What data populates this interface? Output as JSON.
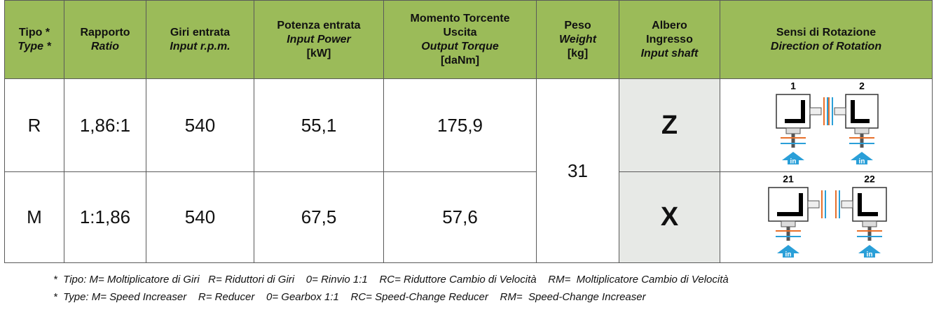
{
  "table": {
    "header": [
      [
        "Tipo *",
        "Type *"
      ],
      [
        "Rapporto",
        "Ratio"
      ],
      [
        "Giri entrata",
        "Input r.p.m."
      ],
      [
        "Potenza entrata",
        "Input Power",
        "[kW]"
      ],
      [
        "Momento Torcente",
        "Uscita",
        "Output Torque",
        "[daNm]"
      ],
      [
        "Peso",
        "Weight",
        "[kg]"
      ],
      [
        "Albero",
        "Ingresso",
        "Input shaft"
      ],
      [
        "Sensi di Rotazione",
        "Direction of Rotation"
      ]
    ],
    "rows": [
      [
        "R",
        "1,86:1",
        "540",
        "55,1",
        "175,9"
      ],
      [
        "M",
        "1:1,86",
        "540",
        "67,5",
        "57,6"
      ]
    ],
    "weight": "31",
    "shafts": [
      "Z",
      "X"
    ],
    "rotation": [
      {
        "labels": [
          "1",
          "2"
        ],
        "input": "in"
      },
      {
        "labels": [
          "21",
          "22"
        ],
        "input": "in"
      }
    ]
  },
  "footnotes": [
    "*  Tipo: M= Moltiplicatore di Giri   R= Riduttori di Giri    0= Rinvio 1:1    RC= Riduttore Cambio di Velocità    RM=  Moltiplicatore Cambio di Velocità",
    "*  Type: M= Speed Increaser    R= Reducer    0= Gearbox 1:1    RC= Speed-Change Reducer    RM=  Speed-Change Increaser"
  ]
}
